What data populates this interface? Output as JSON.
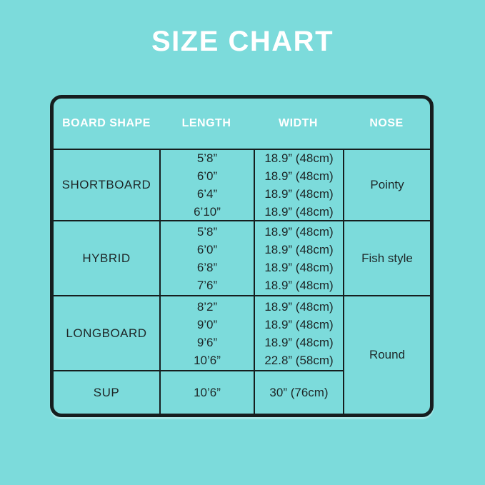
{
  "page": {
    "title": "SIZE CHART",
    "colors": {
      "background": "#7cdbdb",
      "line": "#161e1f",
      "title_text": "#ffffff",
      "header_text": "#ffffff",
      "body_text": "#1e2728"
    }
  },
  "chart_data": {
    "type": "table",
    "title": "SIZE CHART",
    "columns": [
      "BOARD SHAPE",
      "LENGTH",
      "WIDTH",
      "NOSE"
    ],
    "rows": [
      {
        "board_shape": "SHORTBOARD",
        "lengths": [
          "5’8”",
          "6’0”",
          "6’4”",
          "6’10”"
        ],
        "widths": [
          "18.9” (48cm)",
          "18.9” (48cm)",
          "18.9” (48cm)",
          "18.9” (48cm)"
        ],
        "nose": "Pointy",
        "nose_rowspan": 1
      },
      {
        "board_shape": "HYBRID",
        "lengths": [
          "5’8”",
          "6’0”",
          "6’8”",
          "7’6”"
        ],
        "widths": [
          "18.9” (48cm)",
          "18.9” (48cm)",
          "18.9” (48cm)",
          "18.9” (48cm)"
        ],
        "nose": "Fish style",
        "nose_rowspan": 1
      },
      {
        "board_shape": "LONGBOARD",
        "lengths": [
          "8’2”",
          "9’0”",
          "9’6”",
          "10’6”"
        ],
        "widths": [
          "18.9” (48cm)",
          "18.9” (48cm)",
          "18.9” (48cm)",
          "22.8” (58cm)"
        ],
        "nose": "Round",
        "nose_rowspan": 2
      },
      {
        "board_shape": "SUP",
        "lengths": [
          "10’6”"
        ],
        "widths": [
          "30” (76cm)"
        ],
        "nose": null,
        "nose_rowspan": 0
      }
    ],
    "layout": {
      "grid": "on",
      "note": "NOSE cell 'Round' is merged across LONGBOARD and SUP rows"
    }
  }
}
